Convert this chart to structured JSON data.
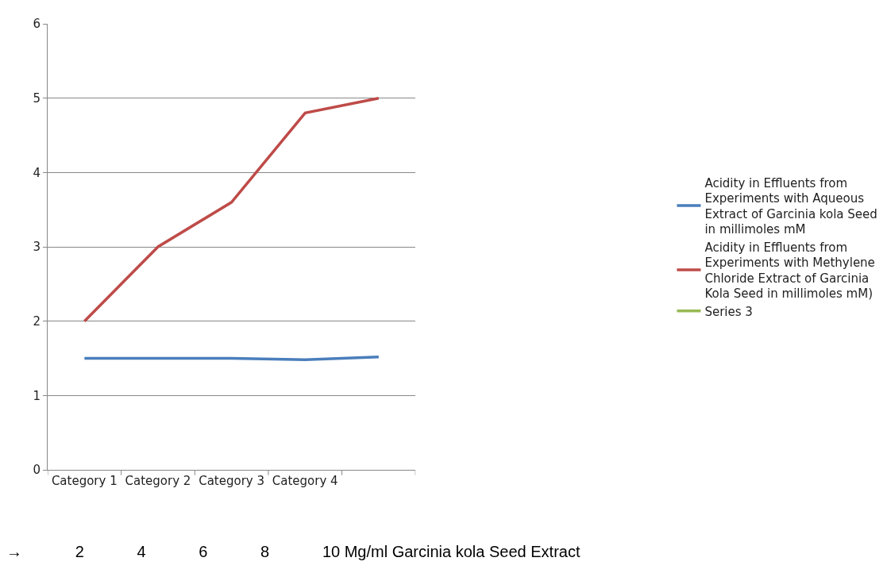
{
  "chart_data": {
    "type": "line",
    "categories": [
      "Category 1",
      "Category 2",
      "Category 3",
      "Category 4",
      null
    ],
    "series": [
      {
        "name": "Acidity in Effluents from Experiments with Aqueous Extract of Garcinia kola Seed in millimoles mM",
        "color": "#4a7ebb",
        "values": [
          1.5,
          1.5,
          1.5,
          1.48,
          1.52
        ]
      },
      {
        "name": "Acidity in Effluents from Experiments with Methylene Chloride Extract of Garcinia Kola Seed in millimoles mM)",
        "color": "#be4b48",
        "values": [
          2.0,
          3.0,
          3.6,
          4.8,
          5.0
        ]
      },
      {
        "name": "Series 3",
        "color": "#98b954",
        "values": [
          null,
          null,
          null,
          null,
          null
        ]
      }
    ],
    "ylim": [
      0,
      6
    ],
    "yticks": [
      0,
      1,
      2,
      3,
      4,
      5,
      6
    ],
    "grid": "y",
    "legend": "right",
    "marker": "none",
    "line_style": "solid",
    "annotations": [
      "→            2            4            6            8            10 Mg/ml Garcinia kola Seed Extract"
    ]
  }
}
